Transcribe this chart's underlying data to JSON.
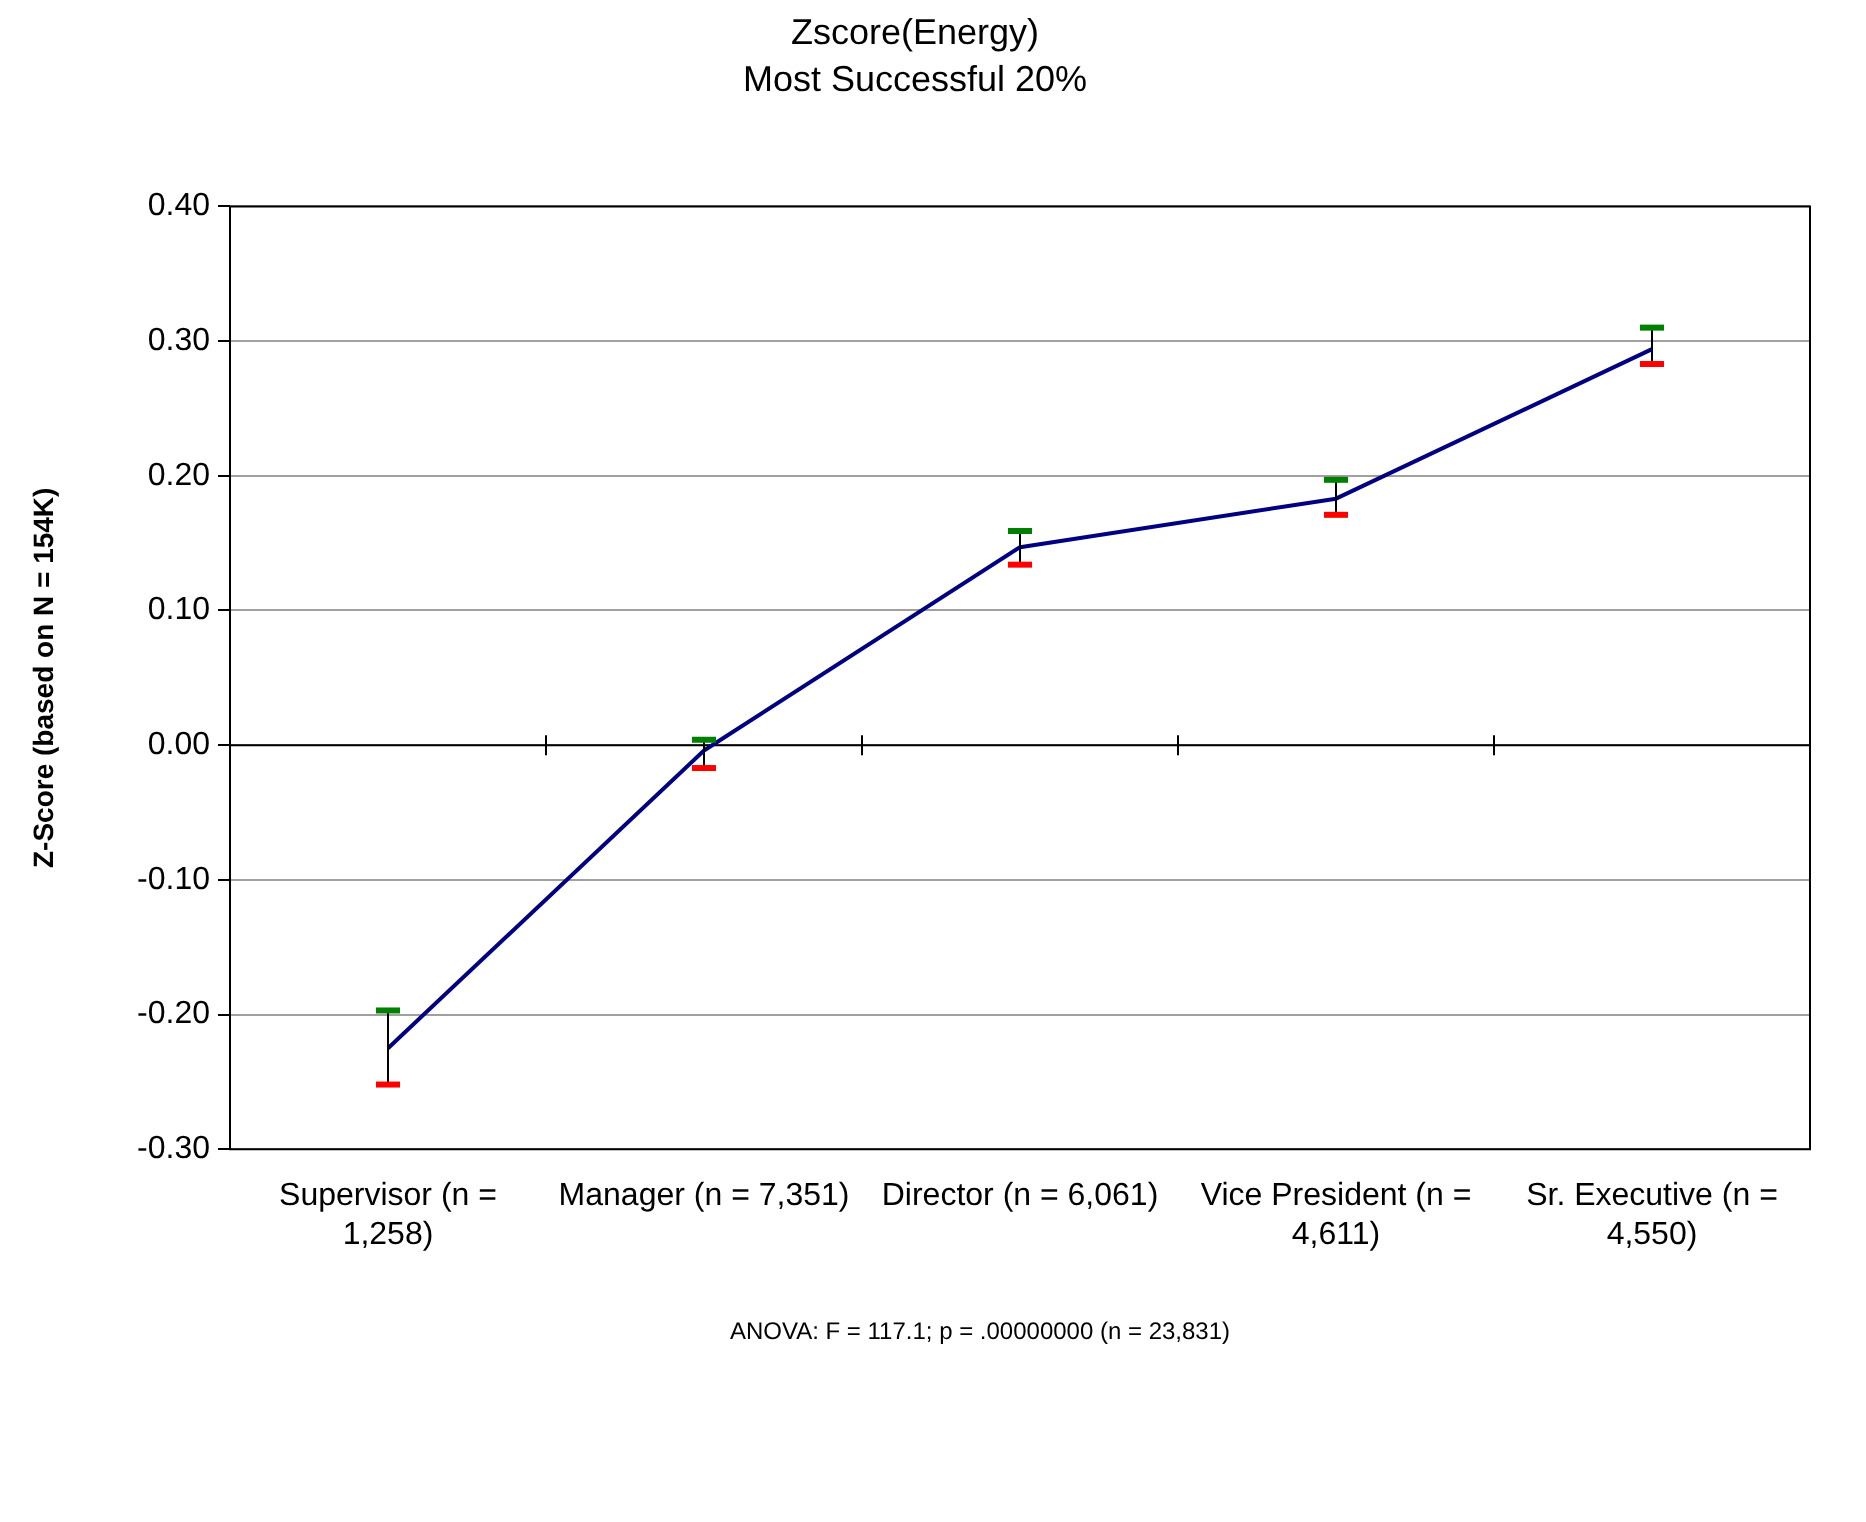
{
  "chart_data": {
    "type": "line",
    "title": "Zscore(Energy)",
    "subtitle": "Most Successful 20%",
    "ylabel": "Z-Score (based on N = 154K)",
    "categories": [
      "Supervisor (n = 1,258)",
      "Manager (n = 7,351)",
      "Director (n = 6,061)",
      "Vice President (n = 4,611)",
      "Sr. Executive (n = 4,550)"
    ],
    "series": [
      {
        "color": "#000080",
        "values": [
          -0.225,
          -0.004,
          0.147,
          0.183,
          0.294
        ],
        "errors": [
          [
            -0.252,
            -0.197
          ],
          [
            -0.017,
            0.004
          ],
          [
            0.134,
            0.159
          ],
          [
            0.171,
            0.197
          ],
          [
            0.283,
            0.31
          ]
        ]
      }
    ],
    "ylim": [
      -0.3,
      0.4
    ],
    "yticks": [
      {
        "value": 0.4,
        "label": "0.40"
      },
      {
        "value": 0.3,
        "label": "0.30"
      },
      {
        "value": 0.2,
        "label": "0.20"
      },
      {
        "value": 0.1,
        "label": "0.10"
      },
      {
        "value": 0,
        "label": "0.00"
      },
      {
        "value": -0.1,
        "label": "-0.10"
      },
      {
        "value": -0.2,
        "label": "-0.20"
      },
      {
        "value": -0.3,
        "label": "-0.30"
      }
    ],
    "grid": "y",
    "legend": false,
    "marker": "none",
    "annotations": [
      "ANOVA: F = 117.1; p = .00000000 (n = 23,831)"
    ]
  }
}
